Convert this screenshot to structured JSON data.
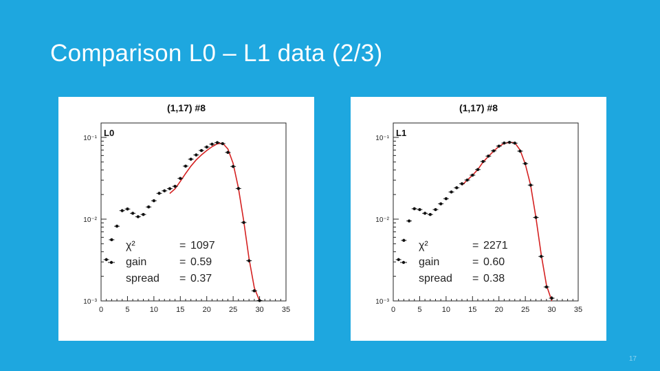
{
  "slide": {
    "title": "Comparison L0 – L1 data (2/3)",
    "page_number": "17"
  },
  "colors": {
    "background": "#1ea7df",
    "fit_curve": "#d42020",
    "markers": "#111111"
  },
  "chart_data": [
    {
      "type": "scatter",
      "title": "(1,17) #8",
      "tag": "L0",
      "xlabel": "",
      "ylabel": "",
      "x_ticks": [
        "0",
        "5",
        "10",
        "15",
        "20",
        "25",
        "30",
        "35"
      ],
      "y_ticks": [
        "10⁻³",
        "10⁻²",
        "10⁻¹"
      ],
      "xlim": [
        0,
        35
      ],
      "ylim": [
        0.001,
        0.15
      ],
      "y_scale": "log",
      "grid": false,
      "stats": [
        {
          "key": "χ²",
          "eq": "=",
          "value": "1097"
        },
        {
          "key": "gain",
          "eq": "=",
          "value": "0.59"
        },
        {
          "key": "spread",
          "eq": "=",
          "value": "0.37"
        }
      ],
      "x": [
        1,
        2,
        3,
        4,
        5,
        6,
        7,
        8,
        9,
        10,
        11,
        12,
        13,
        14,
        15,
        16,
        17,
        18,
        19,
        20,
        21,
        22,
        23,
        24,
        25,
        26,
        27,
        28,
        29,
        30
      ],
      "values": [
        0.0032,
        0.0056,
        0.0082,
        0.0127,
        0.0133,
        0.0118,
        0.0107,
        0.0114,
        0.0141,
        0.0168,
        0.0207,
        0.0222,
        0.0236,
        0.0252,
        0.0315,
        0.0445,
        0.0541,
        0.061,
        0.0691,
        0.0762,
        0.0826,
        0.0863,
        0.0839,
        0.0655,
        0.0441,
        0.0237,
        0.0091,
        0.0031,
        0.00133,
        0.00101
      ],
      "fit_x": [
        13,
        14,
        15,
        16,
        17,
        18,
        19,
        20,
        21,
        22,
        23,
        24,
        25,
        26,
        27,
        28,
        29,
        30
      ],
      "fit_values": [
        0.0206,
        0.0235,
        0.029,
        0.0362,
        0.0445,
        0.053,
        0.061,
        0.069,
        0.077,
        0.0835,
        0.085,
        0.072,
        0.048,
        0.024,
        0.0095,
        0.0033,
        0.00145,
        0.001
      ]
    },
    {
      "type": "scatter",
      "title": "(1,17) #8",
      "tag": "L1",
      "xlabel": "",
      "ylabel": "",
      "x_ticks": [
        "0",
        "5",
        "10",
        "15",
        "20",
        "25",
        "30",
        "35"
      ],
      "y_ticks": [
        "10⁻³",
        "10⁻²",
        "10⁻¹"
      ],
      "xlim": [
        0,
        35
      ],
      "ylim": [
        0.001,
        0.15
      ],
      "y_scale": "log",
      "grid": false,
      "stats": [
        {
          "key": "χ²",
          "eq": "=",
          "value": "2271"
        },
        {
          "key": "gain",
          "eq": "=",
          "value": "0.60"
        },
        {
          "key": "spread",
          "eq": "=",
          "value": "0.38"
        }
      ],
      "x": [
        1,
        2,
        3,
        4,
        5,
        6,
        7,
        8,
        9,
        10,
        11,
        12,
        13,
        14,
        15,
        16,
        17,
        18,
        19,
        20,
        21,
        22,
        23,
        24,
        25,
        26,
        27,
        28,
        29,
        30
      ],
      "values": [
        0.0032,
        0.0055,
        0.0095,
        0.0134,
        0.0131,
        0.0118,
        0.0114,
        0.0131,
        0.0154,
        0.0178,
        0.0215,
        0.0242,
        0.0271,
        0.0301,
        0.0345,
        0.0404,
        0.0507,
        0.059,
        0.0684,
        0.0782,
        0.0853,
        0.087,
        0.085,
        0.0679,
        0.0478,
        0.0261,
        0.0105,
        0.0035,
        0.00148,
        0.00108
      ],
      "fit_x": [
        13,
        14,
        15,
        16,
        17,
        18,
        19,
        20,
        21,
        22,
        23,
        24,
        25,
        26,
        27,
        28,
        29,
        30
      ],
      "fit_values": [
        0.026,
        0.03,
        0.0345,
        0.0405,
        0.05,
        0.0585,
        0.068,
        0.0775,
        0.0845,
        0.087,
        0.086,
        0.07,
        0.047,
        0.026,
        0.0105,
        0.0037,
        0.00155,
        0.001
      ]
    }
  ]
}
